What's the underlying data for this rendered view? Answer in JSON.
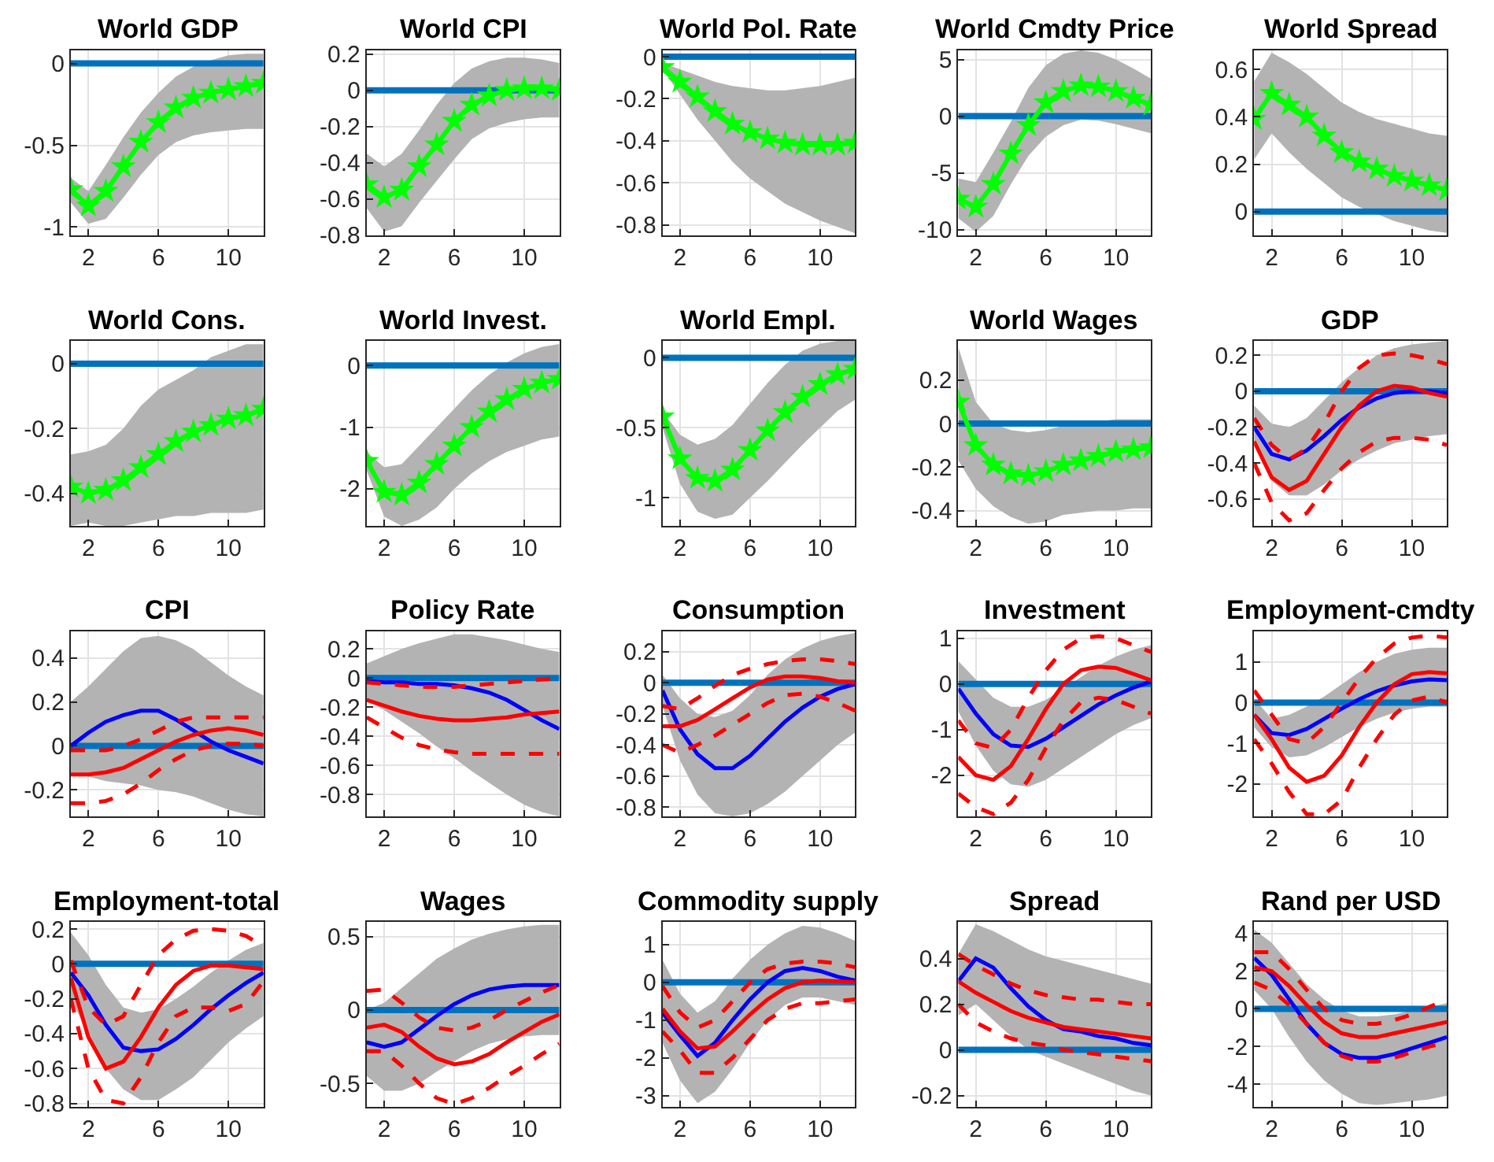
{
  "chart_data": [
    {
      "type": "line",
      "title": "World GDP",
      "x": [
        1,
        2,
        3,
        4,
        5,
        6,
        7,
        8,
        9,
        10,
        11,
        12
      ],
      "xlim": [
        1,
        12
      ],
      "xticks": [
        2,
        6,
        10
      ],
      "ylim": [
        -1.05,
        0.08
      ],
      "yticks": [
        -1,
        -0.5,
        0
      ],
      "grid": true,
      "ref_lines": [
        {
          "axis": "y",
          "value": 0,
          "color": "#0072bd"
        }
      ],
      "series": [
        {
          "color": "#00ff00",
          "marker": "star",
          "values": [
            -0.77,
            -0.87,
            -0.78,
            -0.63,
            -0.48,
            -0.36,
            -0.27,
            -0.21,
            -0.18,
            -0.16,
            -0.14,
            -0.12
          ],
          "lower": [
            -0.85,
            -0.98,
            -0.95,
            -0.82,
            -0.68,
            -0.56,
            -0.48,
            -0.44,
            -0.42,
            -0.41,
            -0.4,
            -0.4
          ],
          "upper": [
            -0.7,
            -0.78,
            -0.62,
            -0.45,
            -0.3,
            -0.18,
            -0.08,
            -0.02,
            0.02,
            0.05,
            0.06,
            0.06
          ]
        }
      ]
    },
    {
      "type": "line",
      "title": "World CPI",
      "x": [
        1,
        2,
        3,
        4,
        5,
        6,
        7,
        8,
        9,
        10,
        11,
        12
      ],
      "xlim": [
        1,
        12
      ],
      "xticks": [
        2,
        6,
        10
      ],
      "ylim": [
        -0.8,
        0.22
      ],
      "yticks": [
        -0.8,
        -0.6,
        -0.4,
        -0.2,
        0,
        0.2
      ],
      "grid": true,
      "ref_lines": [
        {
          "axis": "y",
          "value": 0,
          "color": "#0072bd"
        }
      ],
      "series": [
        {
          "color": "#00ff00",
          "marker": "star",
          "values": [
            -0.52,
            -0.59,
            -0.55,
            -0.42,
            -0.3,
            -0.17,
            -0.08,
            -0.03,
            0,
            0.01,
            0.01,
            0
          ],
          "lower": [
            -0.65,
            -0.78,
            -0.75,
            -0.62,
            -0.5,
            -0.38,
            -0.27,
            -0.21,
            -0.18,
            -0.16,
            -0.15,
            -0.15
          ],
          "upper": [
            -0.35,
            -0.42,
            -0.35,
            -0.22,
            -0.08,
            0.04,
            0.12,
            0.16,
            0.18,
            0.18,
            0.17,
            0.15
          ]
        }
      ]
    },
    {
      "type": "line",
      "title": "World Pol. Rate",
      "x": [
        1,
        2,
        3,
        4,
        5,
        6,
        7,
        8,
        9,
        10,
        11,
        12
      ],
      "xlim": [
        1,
        12
      ],
      "xticks": [
        2,
        6,
        10
      ],
      "ylim": [
        -0.85,
        0.03
      ],
      "yticks": [
        -0.8,
        -0.6,
        -0.4,
        -0.2,
        0
      ],
      "grid": true,
      "ref_lines": [
        {
          "axis": "y",
          "value": 0,
          "color": "#0072bd"
        }
      ],
      "series": [
        {
          "color": "#00ff00",
          "marker": "star",
          "values": [
            -0.05,
            -0.12,
            -0.19,
            -0.26,
            -0.32,
            -0.36,
            -0.39,
            -0.41,
            -0.42,
            -0.42,
            -0.42,
            -0.41
          ],
          "lower": [
            -0.06,
            -0.18,
            -0.3,
            -0.4,
            -0.5,
            -0.58,
            -0.64,
            -0.7,
            -0.74,
            -0.78,
            -0.81,
            -0.84
          ],
          "upper": [
            -0.03,
            -0.06,
            -0.09,
            -0.12,
            -0.14,
            -0.15,
            -0.16,
            -0.16,
            -0.15,
            -0.14,
            -0.12,
            -0.1
          ]
        }
      ]
    },
    {
      "type": "line",
      "title": "World Cmdty Price",
      "x": [
        1,
        2,
        3,
        4,
        5,
        6,
        7,
        8,
        9,
        10,
        11,
        12
      ],
      "xlim": [
        1,
        12
      ],
      "xticks": [
        2,
        6,
        10
      ],
      "ylim": [
        -10.5,
        5.8
      ],
      "yticks": [
        -10,
        -5,
        0,
        5
      ],
      "grid": true,
      "ref_lines": [
        {
          "axis": "y",
          "value": 0,
          "color": "#0072bd"
        }
      ],
      "series": [
        {
          "color": "#00ff00",
          "marker": "star",
          "values": [
            -7.3,
            -8,
            -6,
            -3.3,
            -0.8,
            1.2,
            2.2,
            2.7,
            2.6,
            2.2,
            1.6,
            1
          ],
          "lower": [
            -9,
            -10.2,
            -8.8,
            -6,
            -3.5,
            -1.8,
            -0.8,
            -0.3,
            -0.4,
            -0.7,
            -1.1,
            -1.5
          ],
          "upper": [
            -5.5,
            -5.8,
            -3.2,
            -0.5,
            2.5,
            4.5,
            5.5,
            5.8,
            5.6,
            5,
            4.2,
            3.3
          ]
        }
      ]
    },
    {
      "type": "line",
      "title": "World Spread",
      "x": [
        1,
        2,
        3,
        4,
        5,
        6,
        7,
        8,
        9,
        10,
        11,
        12
      ],
      "xlim": [
        1,
        12
      ],
      "xticks": [
        2,
        6,
        10
      ],
      "ylim": [
        -0.1,
        0.68
      ],
      "yticks": [
        0,
        0.2,
        0.4,
        0.6
      ],
      "grid": true,
      "ref_lines": [
        {
          "axis": "y",
          "value": 0,
          "color": "#0072bd"
        }
      ],
      "series": [
        {
          "color": "#00ff00",
          "marker": "star",
          "values": [
            0.39,
            0.5,
            0.45,
            0.4,
            0.32,
            0.25,
            0.21,
            0.18,
            0.15,
            0.13,
            0.11,
            0.09
          ],
          "lower": [
            0.22,
            0.33,
            0.25,
            0.18,
            0.12,
            0.06,
            0.02,
            -0.01,
            -0.04,
            -0.06,
            -0.08,
            -0.09
          ],
          "upper": [
            0.55,
            0.67,
            0.63,
            0.58,
            0.52,
            0.46,
            0.42,
            0.39,
            0.37,
            0.35,
            0.33,
            0.32
          ]
        }
      ]
    },
    {
      "type": "line",
      "title": "World Cons.",
      "x": [
        1,
        2,
        3,
        4,
        5,
        6,
        7,
        8,
        9,
        10,
        11,
        12
      ],
      "xlim": [
        1,
        12
      ],
      "xticks": [
        2,
        6,
        10
      ],
      "ylim": [
        -0.5,
        0.07
      ],
      "yticks": [
        -0.4,
        -0.2,
        0
      ],
      "grid": true,
      "ref_lines": [
        {
          "axis": "y",
          "value": 0,
          "color": "#0072bd"
        }
      ],
      "series": [
        {
          "color": "#00ff00",
          "marker": "star",
          "values": [
            -0.38,
            -0.4,
            -0.39,
            -0.36,
            -0.32,
            -0.28,
            -0.24,
            -0.21,
            -0.19,
            -0.17,
            -0.16,
            -0.14
          ],
          "lower": [
            -0.5,
            -0.49,
            -0.5,
            -0.5,
            -0.49,
            -0.48,
            -0.47,
            -0.47,
            -0.46,
            -0.46,
            -0.46,
            -0.45
          ],
          "upper": [
            -0.28,
            -0.27,
            -0.25,
            -0.2,
            -0.13,
            -0.08,
            -0.05,
            -0.02,
            0.02,
            0.04,
            0.06,
            0.06
          ]
        }
      ]
    },
    {
      "type": "line",
      "title": "World Invest.",
      "x": [
        1,
        2,
        3,
        4,
        5,
        6,
        7,
        8,
        9,
        10,
        11,
        12
      ],
      "xlim": [
        1,
        12
      ],
      "xticks": [
        2,
        6,
        10
      ],
      "ylim": [
        -2.6,
        0.4
      ],
      "yticks": [
        -2,
        -1,
        0
      ],
      "grid": true,
      "ref_lines": [
        {
          "axis": "y",
          "value": 0,
          "color": "#0072bd"
        }
      ],
      "series": [
        {
          "color": "#00ff00",
          "marker": "star",
          "values": [
            -1.55,
            -2.05,
            -2.1,
            -1.9,
            -1.6,
            -1.3,
            -1,
            -0.75,
            -0.55,
            -0.38,
            -0.28,
            -0.22
          ],
          "lower": [
            -1.7,
            -2.45,
            -2.6,
            -2.5,
            -2.3,
            -2,
            -1.75,
            -1.55,
            -1.4,
            -1.3,
            -1.2,
            -1.15
          ],
          "upper": [
            -1.4,
            -1.65,
            -1.6,
            -1.3,
            -1,
            -0.7,
            -0.4,
            -0.15,
            0.05,
            0.2,
            0.3,
            0.35
          ]
        }
      ]
    },
    {
      "type": "line",
      "title": "World Empl.",
      "x": [
        1,
        2,
        3,
        4,
        5,
        6,
        7,
        8,
        9,
        10,
        11,
        12
      ],
      "xlim": [
        1,
        12
      ],
      "xticks": [
        2,
        6,
        10
      ],
      "ylim": [
        -1.2,
        0.12
      ],
      "yticks": [
        -1,
        -0.5,
        0
      ],
      "grid": true,
      "ref_lines": [
        {
          "axis": "y",
          "value": 0,
          "color": "#0072bd"
        }
      ],
      "series": [
        {
          "color": "#00ff00",
          "marker": "star",
          "values": [
            -0.42,
            -0.72,
            -0.86,
            -0.88,
            -0.8,
            -0.66,
            -0.52,
            -0.39,
            -0.28,
            -0.19,
            -0.12,
            -0.08
          ],
          "lower": [
            -0.5,
            -0.9,
            -1.1,
            -1.15,
            -1.12,
            -1,
            -0.88,
            -0.75,
            -0.62,
            -0.5,
            -0.38,
            -0.3
          ],
          "upper": [
            -0.38,
            -0.55,
            -0.62,
            -0.58,
            -0.48,
            -0.33,
            -0.18,
            -0.05,
            0.05,
            0.1,
            0.12,
            0.12
          ]
        }
      ]
    },
    {
      "type": "line",
      "title": "World Wages",
      "x": [
        1,
        2,
        3,
        4,
        5,
        6,
        7,
        8,
        9,
        10,
        11,
        12
      ],
      "xlim": [
        1,
        12
      ],
      "xticks": [
        2,
        6,
        10
      ],
      "ylim": [
        -0.47,
        0.38
      ],
      "yticks": [
        -0.4,
        -0.2,
        0,
        0.2
      ],
      "grid": true,
      "ref_lines": [
        {
          "axis": "y",
          "value": 0,
          "color": "#0072bd"
        }
      ],
      "series": [
        {
          "color": "#00ff00",
          "marker": "star",
          "values": [
            0.1,
            -0.1,
            -0.19,
            -0.23,
            -0.24,
            -0.22,
            -0.19,
            -0.17,
            -0.15,
            -0.13,
            -0.12,
            -0.11
          ],
          "lower": [
            -0.17,
            -0.3,
            -0.38,
            -0.43,
            -0.46,
            -0.45,
            -0.42,
            -0.41,
            -0.4,
            -0.4,
            -0.39,
            -0.39
          ],
          "upper": [
            0.35,
            0.1,
            0,
            -0.03,
            -0.04,
            -0.03,
            -0.01,
            0,
            0.01,
            0.02,
            0.02,
            0.02
          ]
        }
      ]
    },
    {
      "type": "line",
      "title": "GDP",
      "x": [
        1,
        2,
        3,
        4,
        5,
        6,
        7,
        8,
        9,
        10,
        11,
        12
      ],
      "xlim": [
        1,
        12
      ],
      "xticks": [
        2,
        6,
        10
      ],
      "ylim": [
        -0.75,
        0.28
      ],
      "yticks": [
        -0.6,
        -0.4,
        -0.2,
        0,
        0.2
      ],
      "grid": true,
      "ref_lines": [
        {
          "axis": "y",
          "value": 0,
          "color": "#0072bd"
        }
      ],
      "series": [
        {
          "color": "#0000ff",
          "values": [
            -0.2,
            -0.35,
            -0.38,
            -0.33,
            -0.25,
            -0.16,
            -0.09,
            -0.04,
            -0.01,
            0,
            0,
            -0.01
          ],
          "lower": [
            -0.3,
            -0.5,
            -0.58,
            -0.58,
            -0.52,
            -0.44,
            -0.38,
            -0.33,
            -0.29,
            -0.27,
            -0.25,
            -0.24
          ],
          "upper": [
            -0.08,
            -0.18,
            -0.2,
            -0.15,
            -0.05,
            0.05,
            0.13,
            0.2,
            0.24,
            0.26,
            0.27,
            0.28
          ]
        },
        {
          "color": "#ff0000",
          "values": [
            -0.28,
            -0.48,
            -0.55,
            -0.5,
            -0.35,
            -0.2,
            -0.08,
            0,
            0.03,
            0.02,
            -0.01,
            -0.03
          ]
        },
        {
          "color": "#ff0000",
          "line_style": "dashed",
          "values": [
            -0.15,
            -0.3,
            -0.38,
            -0.32,
            -0.18,
            0,
            0.13,
            0.2,
            0.21,
            0.2,
            0.18,
            0.15
          ]
        },
        {
          "color": "#ff0000",
          "line_style": "dashed",
          "values": [
            -0.4,
            -0.62,
            -0.72,
            -0.68,
            -0.55,
            -0.43,
            -0.34,
            -0.28,
            -0.26,
            -0.26,
            -0.27,
            -0.3
          ]
        }
      ]
    },
    {
      "type": "line",
      "title": "CPI",
      "x": [
        1,
        2,
        3,
        4,
        5,
        6,
        7,
        8,
        9,
        10,
        11,
        12
      ],
      "xlim": [
        1,
        12
      ],
      "xticks": [
        2,
        6,
        10
      ],
      "ylim": [
        -0.32,
        0.52
      ],
      "yticks": [
        -0.2,
        0,
        0.2,
        0.4
      ],
      "grid": true,
      "ref_lines": [
        {
          "axis": "y",
          "value": 0,
          "color": "#0072bd"
        }
      ],
      "series": [
        {
          "color": "#0000ff",
          "values": [
            0,
            0.06,
            0.11,
            0.14,
            0.16,
            0.16,
            0.12,
            0.07,
            0.02,
            -0.02,
            -0.05,
            -0.08
          ],
          "lower": [
            -0.12,
            -0.14,
            -0.16,
            -0.17,
            -0.18,
            -0.2,
            -0.21,
            -0.23,
            -0.26,
            -0.29,
            -0.31,
            -0.32
          ],
          "upper": [
            0.2,
            0.27,
            0.35,
            0.43,
            0.49,
            0.5,
            0.48,
            0.44,
            0.38,
            0.32,
            0.27,
            0.23
          ]
        },
        {
          "color": "#ff0000",
          "values": [
            -0.13,
            -0.13,
            -0.12,
            -0.1,
            -0.06,
            -0.02,
            0.02,
            0.05,
            0.07,
            0.08,
            0.07,
            0.05
          ]
        },
        {
          "color": "#ff0000",
          "line_style": "dashed",
          "values": [
            -0.02,
            -0.02,
            -0.02,
            0,
            0.03,
            0.07,
            0.11,
            0.13,
            0.13,
            0.13,
            0.13,
            0.13
          ]
        },
        {
          "color": "#ff0000",
          "line_style": "dashed",
          "values": [
            -0.26,
            -0.26,
            -0.25,
            -0.22,
            -0.17,
            -0.11,
            -0.06,
            -0.02,
            0,
            0.01,
            0.01,
            0
          ]
        }
      ]
    },
    {
      "type": "line",
      "title": "Policy Rate",
      "x": [
        1,
        2,
        3,
        4,
        5,
        6,
        7,
        8,
        9,
        10,
        11,
        12
      ],
      "xlim": [
        1,
        12
      ],
      "xticks": [
        2,
        6,
        10
      ],
      "ylim": [
        -0.95,
        0.32
      ],
      "yticks": [
        -0.8,
        -0.6,
        -0.4,
        -0.2,
        0,
        0.2
      ],
      "grid": true,
      "ref_lines": [
        {
          "axis": "y",
          "value": 0,
          "color": "#0072bd"
        }
      ],
      "series": [
        {
          "color": "#0000ff",
          "values": [
            -0.02,
            -0.03,
            -0.03,
            -0.04,
            -0.04,
            -0.05,
            -0.07,
            -0.1,
            -0.15,
            -0.22,
            -0.29,
            -0.35
          ],
          "lower": [
            -0.15,
            -0.22,
            -0.3,
            -0.38,
            -0.47,
            -0.55,
            -0.64,
            -0.72,
            -0.8,
            -0.87,
            -0.92,
            -0.95
          ],
          "upper": [
            0.1,
            0.15,
            0.2,
            0.24,
            0.27,
            0.3,
            0.3,
            0.28,
            0.26,
            0.23,
            0.2,
            0.18
          ]
        },
        {
          "color": "#ff0000",
          "values": [
            -0.15,
            -0.19,
            -0.23,
            -0.26,
            -0.28,
            -0.29,
            -0.29,
            -0.28,
            -0.27,
            -0.25,
            -0.24,
            -0.23
          ]
        },
        {
          "color": "#ff0000",
          "line_style": "dashed",
          "values": [
            -0.03,
            -0.04,
            -0.05,
            -0.06,
            -0.06,
            -0.06,
            -0.05,
            -0.04,
            -0.03,
            -0.02,
            -0.01,
            0
          ]
        },
        {
          "color": "#ff0000",
          "line_style": "dashed",
          "values": [
            -0.27,
            -0.34,
            -0.41,
            -0.46,
            -0.49,
            -0.51,
            -0.52,
            -0.52,
            -0.52,
            -0.52,
            -0.52,
            -0.52
          ]
        }
      ]
    },
    {
      "type": "line",
      "title": "Consumption",
      "x": [
        1,
        2,
        3,
        4,
        5,
        6,
        7,
        8,
        9,
        10,
        11,
        12
      ],
      "xlim": [
        1,
        12
      ],
      "xticks": [
        2,
        6,
        10
      ],
      "ylim": [
        -0.86,
        0.33
      ],
      "yticks": [
        -0.8,
        -0.6,
        -0.4,
        -0.2,
        0,
        0.2
      ],
      "grid": true,
      "ref_lines": [
        {
          "axis": "y",
          "value": 0,
          "color": "#0072bd"
        }
      ],
      "series": [
        {
          "color": "#0000ff",
          "values": [
            -0.05,
            -0.3,
            -0.46,
            -0.55,
            -0.55,
            -0.47,
            -0.36,
            -0.25,
            -0.16,
            -0.09,
            -0.04,
            -0.01
          ],
          "lower": [
            -0.15,
            -0.5,
            -0.72,
            -0.84,
            -0.86,
            -0.84,
            -0.78,
            -0.7,
            -0.6,
            -0.5,
            -0.4,
            -0.32
          ],
          "upper": [
            0.05,
            -0.1,
            -0.2,
            -0.22,
            -0.18,
            -0.08,
            0.05,
            0.15,
            0.22,
            0.27,
            0.3,
            0.32
          ]
        },
        {
          "color": "#ff0000",
          "values": [
            -0.28,
            -0.28,
            -0.24,
            -0.17,
            -0.1,
            -0.03,
            0.02,
            0.04,
            0.04,
            0.03,
            0.01,
            0
          ]
        },
        {
          "color": "#ff0000",
          "line_style": "dashed",
          "values": [
            -0.15,
            -0.17,
            -0.1,
            -0.02,
            0.05,
            0.09,
            0.12,
            0.14,
            0.15,
            0.15,
            0.14,
            0.12
          ]
        },
        {
          "color": "#ff0000",
          "line_style": "dashed",
          "values": [
            -0.4,
            -0.45,
            -0.4,
            -0.34,
            -0.27,
            -0.2,
            -0.13,
            -0.08,
            -0.07,
            -0.09,
            -0.13,
            -0.18
          ]
        }
      ]
    },
    {
      "type": "line",
      "title": "Investment",
      "x": [
        1,
        2,
        3,
        4,
        5,
        6,
        7,
        8,
        9,
        10,
        11,
        12
      ],
      "xlim": [
        1,
        12
      ],
      "xticks": [
        2,
        6,
        10
      ],
      "ylim": [
        -2.9,
        1.15
      ],
      "yticks": [
        -2,
        -1,
        0,
        1
      ],
      "grid": true,
      "ref_lines": [
        {
          "axis": "y",
          "value": 0,
          "color": "#0072bd"
        }
      ],
      "series": [
        {
          "color": "#0000ff",
          "values": [
            -0.1,
            -0.65,
            -1.1,
            -1.35,
            -1.38,
            -1.2,
            -0.95,
            -0.7,
            -0.45,
            -0.25,
            -0.08,
            0.05
          ],
          "lower": [
            -0.6,
            -1.35,
            -1.9,
            -2.2,
            -2.25,
            -2.1,
            -1.85,
            -1.6,
            -1.35,
            -1.1,
            -0.9,
            -0.75
          ],
          "upper": [
            0.5,
            0.1,
            -0.3,
            -0.5,
            -0.5,
            -0.35,
            -0.1,
            0.15,
            0.4,
            0.6,
            0.75,
            0.85
          ]
        },
        {
          "color": "#ff0000",
          "values": [
            -1.6,
            -2,
            -2.1,
            -1.8,
            -1.2,
            -0.55,
            0,
            0.3,
            0.38,
            0.35,
            0.22,
            0.08
          ]
        },
        {
          "color": "#ff0000",
          "line_style": "dashed",
          "values": [
            -0.8,
            -1.3,
            -1.4,
            -1,
            -0.3,
            0.3,
            0.75,
            1,
            1.05,
            1,
            0.85,
            0.7
          ]
        },
        {
          "color": "#ff0000",
          "line_style": "dashed",
          "values": [
            -2.4,
            -2.7,
            -2.85,
            -2.6,
            -2.1,
            -1.4,
            -0.8,
            -0.4,
            -0.3,
            -0.35,
            -0.5,
            -0.65
          ]
        }
      ]
    },
    {
      "type": "line",
      "title": "Employment-cmdty",
      "x": [
        1,
        2,
        3,
        4,
        5,
        6,
        7,
        8,
        9,
        10,
        11,
        12
      ],
      "xlim": [
        1,
        12
      ],
      "xticks": [
        2,
        6,
        10
      ],
      "ylim": [
        -2.8,
        1.75
      ],
      "yticks": [
        -2,
        -1,
        0,
        1
      ],
      "grid": true,
      "ref_lines": [
        {
          "axis": "y",
          "value": 0,
          "color": "#0072bd"
        }
      ],
      "series": [
        {
          "color": "#0000ff",
          "values": [
            -0.3,
            -0.75,
            -0.8,
            -0.65,
            -0.4,
            -0.15,
            0.08,
            0.28,
            0.42,
            0.52,
            0.57,
            0.55
          ],
          "lower": [
            -0.6,
            -1.1,
            -1.35,
            -1.3,
            -1.1,
            -0.85,
            -0.6,
            -0.4,
            -0.25,
            -0.15,
            -0.1,
            -0.1
          ],
          "upper": [
            0.1,
            -0.4,
            -0.3,
            -0.1,
            0.15,
            0.45,
            0.75,
            1,
            1.2,
            1.3,
            1.35,
            1.35
          ]
        },
        {
          "color": "#ff0000",
          "values": [
            -0.3,
            -0.9,
            -1.6,
            -1.95,
            -1.8,
            -1.3,
            -0.6,
            0,
            0.45,
            0.7,
            0.75,
            0.72
          ]
        },
        {
          "color": "#ff0000",
          "line_style": "dashed",
          "values": [
            0.3,
            -0.3,
            -0.9,
            -1,
            -0.6,
            0,
            0.6,
            1.1,
            1.45,
            1.6,
            1.65,
            1.6
          ]
        },
        {
          "color": "#ff0000",
          "line_style": "dashed",
          "values": [
            -0.9,
            -1.5,
            -2.2,
            -2.75,
            -2.75,
            -2.4,
            -1.6,
            -0.9,
            -0.3,
            0.05,
            0.15,
            0
          ]
        }
      ]
    },
    {
      "type": "line",
      "title": "Employment-total",
      "x": [
        1,
        2,
        3,
        4,
        5,
        6,
        7,
        8,
        9,
        10,
        11,
        12
      ],
      "xlim": [
        1,
        12
      ],
      "xticks": [
        2,
        6,
        10
      ],
      "ylim": [
        -0.82,
        0.24
      ],
      "yticks": [
        -0.8,
        -0.6,
        -0.4,
        -0.2,
        0,
        0.2
      ],
      "grid": true,
      "ref_lines": [
        {
          "axis": "y",
          "value": 0,
          "color": "#0072bd"
        }
      ],
      "series": [
        {
          "color": "#0000ff",
          "values": [
            -0.05,
            -0.18,
            -0.35,
            -0.48,
            -0.5,
            -0.49,
            -0.43,
            -0.35,
            -0.26,
            -0.18,
            -0.11,
            -0.05
          ],
          "lower": [
            -0.2,
            -0.4,
            -0.6,
            -0.72,
            -0.78,
            -0.78,
            -0.72,
            -0.65,
            -0.55,
            -0.45,
            -0.37,
            -0.3
          ],
          "upper": [
            0.18,
            0.05,
            -0.12,
            -0.25,
            -0.28,
            -0.26,
            -0.2,
            -0.13,
            -0.05,
            0.02,
            0.08,
            0.12
          ]
        },
        {
          "color": "#ff0000",
          "values": [
            -0.08,
            -0.42,
            -0.6,
            -0.56,
            -0.42,
            -0.25,
            -0.12,
            -0.04,
            -0.01,
            -0.01,
            -0.02,
            -0.03
          ]
        },
        {
          "color": "#ff0000",
          "line_style": "dashed",
          "values": [
            0.02,
            -0.25,
            -0.35,
            -0.3,
            -0.12,
            0.05,
            0.14,
            0.19,
            0.2,
            0.19,
            0.16,
            0.1
          ]
        },
        {
          "color": "#ff0000",
          "line_style": "dashed",
          "values": [
            -0.2,
            -0.6,
            -0.78,
            -0.8,
            -0.65,
            -0.45,
            -0.3,
            -0.25,
            -0.25,
            -0.27,
            -0.23,
            -0.1
          ]
        }
      ]
    },
    {
      "type": "line",
      "title": "Wages",
      "x": [
        1,
        2,
        3,
        4,
        5,
        6,
        7,
        8,
        9,
        10,
        11,
        12
      ],
      "xlim": [
        1,
        12
      ],
      "xticks": [
        2,
        6,
        10
      ],
      "ylim": [
        -0.66,
        0.6
      ],
      "yticks": [
        -0.5,
        0,
        0.5
      ],
      "grid": true,
      "ref_lines": [
        {
          "axis": "y",
          "value": 0,
          "color": "#0072bd"
        }
      ],
      "series": [
        {
          "color": "#0000ff",
          "values": [
            -0.22,
            -0.25,
            -0.22,
            -0.13,
            -0.04,
            0.04,
            0.1,
            0.14,
            0.16,
            0.17,
            0.17,
            0.17
          ],
          "lower": [
            -0.45,
            -0.55,
            -0.55,
            -0.5,
            -0.42,
            -0.35,
            -0.28,
            -0.23,
            -0.2,
            -0.18,
            -0.17,
            -0.17
          ],
          "upper": [
            0,
            0.05,
            0.15,
            0.25,
            0.35,
            0.42,
            0.48,
            0.52,
            0.55,
            0.57,
            0.58,
            0.58
          ]
        },
        {
          "color": "#ff0000",
          "values": [
            -0.12,
            -0.1,
            -0.15,
            -0.25,
            -0.33,
            -0.37,
            -0.35,
            -0.3,
            -0.22,
            -0.15,
            -0.08,
            -0.03
          ]
        },
        {
          "color": "#ff0000",
          "line_style": "dashed",
          "values": [
            0.13,
            0.14,
            0.05,
            -0.05,
            -0.12,
            -0.14,
            -0.12,
            -0.07,
            0,
            0.06,
            0.12,
            0.17
          ]
        },
        {
          "color": "#ff0000",
          "line_style": "dashed",
          "values": [
            -0.28,
            -0.28,
            -0.38,
            -0.5,
            -0.6,
            -0.64,
            -0.6,
            -0.53,
            -0.45,
            -0.38,
            -0.3,
            -0.23
          ]
        }
      ]
    },
    {
      "type": "line",
      "title": "Commodity supply",
      "x": [
        1,
        2,
        3,
        4,
        5,
        6,
        7,
        8,
        9,
        10,
        11,
        12
      ],
      "xlim": [
        1,
        12
      ],
      "xticks": [
        2,
        6,
        10
      ],
      "ylim": [
        -3.3,
        1.6
      ],
      "yticks": [
        -3,
        -2,
        -1,
        0,
        1
      ],
      "grid": true,
      "ref_lines": [
        {
          "axis": "y",
          "value": 0,
          "color": "#0072bd"
        }
      ],
      "series": [
        {
          "color": "#0000ff",
          "values": [
            -0.8,
            -1.4,
            -1.95,
            -1.6,
            -1,
            -0.45,
            0,
            0.3,
            0.38,
            0.3,
            0.15,
            0.05
          ],
          "lower": [
            -1.6,
            -2.6,
            -3.2,
            -2.9,
            -2.3,
            -1.6,
            -1,
            -0.6,
            -0.4,
            -0.4,
            -0.5,
            -0.6
          ],
          "upper": [
            0.6,
            -0.3,
            -0.8,
            -0.5,
            0.1,
            0.6,
            1,
            1.3,
            1.5,
            1.45,
            1.3,
            1.1
          ]
        },
        {
          "color": "#ff0000",
          "values": [
            -0.7,
            -1.3,
            -1.75,
            -1.7,
            -1.3,
            -0.85,
            -0.45,
            -0.15,
            0,
            0.05,
            0.03,
            0
          ]
        },
        {
          "color": "#ff0000",
          "line_style": "dashed",
          "values": [
            -0.1,
            -0.8,
            -1.2,
            -1,
            -0.5,
            0,
            0.35,
            0.5,
            0.55,
            0.55,
            0.5,
            0.4
          ]
        },
        {
          "color": "#ff0000",
          "line_style": "dashed",
          "values": [
            -1.3,
            -1.8,
            -2.4,
            -2.4,
            -2,
            -1.5,
            -1,
            -0.7,
            -0.55,
            -0.55,
            -0.5,
            -0.45
          ]
        }
      ]
    },
    {
      "type": "line",
      "title": "Spread",
      "x": [
        1,
        2,
        3,
        4,
        5,
        6,
        7,
        8,
        9,
        10,
        11,
        12
      ],
      "xlim": [
        1,
        12
      ],
      "xticks": [
        2,
        6,
        10
      ],
      "ylim": [
        -0.25,
        0.56
      ],
      "yticks": [
        -0.2,
        0,
        0.2,
        0.4
      ],
      "grid": true,
      "ref_lines": [
        {
          "axis": "y",
          "value": 0,
          "color": "#0072bd"
        }
      ],
      "series": [
        {
          "color": "#0000ff",
          "values": [
            0.3,
            0.4,
            0.36,
            0.27,
            0.19,
            0.13,
            0.09,
            0.08,
            0.06,
            0.05,
            0.03,
            0.02
          ],
          "lower": [
            0.15,
            0.2,
            0.13,
            0.06,
            0,
            -0.03,
            -0.06,
            -0.09,
            -0.12,
            -0.15,
            -0.18,
            -0.2
          ],
          "upper": [
            0.42,
            0.55,
            0.52,
            0.48,
            0.44,
            0.41,
            0.39,
            0.37,
            0.35,
            0.33,
            0.31,
            0.29
          ]
        },
        {
          "color": "#ff0000",
          "values": [
            0.3,
            0.25,
            0.21,
            0.17,
            0.14,
            0.12,
            0.1,
            0.09,
            0.08,
            0.07,
            0.06,
            0.05
          ]
        },
        {
          "color": "#ff0000",
          "line_style": "dashed",
          "values": [
            0.42,
            0.37,
            0.33,
            0.29,
            0.26,
            0.24,
            0.23,
            0.22,
            0.22,
            0.21,
            0.2,
            0.2
          ]
        },
        {
          "color": "#ff0000",
          "line_style": "dashed",
          "values": [
            0.2,
            0.12,
            0.08,
            0.05,
            0.03,
            0.02,
            0,
            -0.01,
            -0.02,
            -0.03,
            -0.04,
            -0.05
          ]
        }
      ]
    },
    {
      "type": "line",
      "title": "Rand per USD",
      "x": [
        1,
        2,
        3,
        4,
        5,
        6,
        7,
        8,
        9,
        10,
        11,
        12
      ],
      "xlim": [
        1,
        12
      ],
      "xticks": [
        2,
        6,
        10
      ],
      "ylim": [
        -5.2,
        4.6
      ],
      "yticks": [
        -4,
        -2,
        0,
        2,
        4
      ],
      "grid": true,
      "ref_lines": [
        {
          "axis": "y",
          "value": 0,
          "color": "#0072bd"
        }
      ],
      "series": [
        {
          "color": "#0000ff",
          "values": [
            2.7,
            1.8,
            0.5,
            -0.8,
            -1.8,
            -2.4,
            -2.6,
            -2.6,
            -2.4,
            -2.1,
            -1.8,
            -1.5
          ],
          "lower": [
            1,
            0,
            -1.5,
            -2.8,
            -3.8,
            -4.5,
            -5,
            -5.1,
            -5,
            -4.9,
            -4.8,
            -4.6
          ],
          "upper": [
            4.2,
            3.5,
            2.4,
            1.3,
            0.5,
            -0.1,
            -0.4,
            -0.4,
            -0.3,
            -0.1,
            0.1,
            0.3
          ]
        },
        {
          "color": "#ff0000",
          "values": [
            2.2,
            2,
            1.2,
            0.2,
            -0.7,
            -1.3,
            -1.5,
            -1.5,
            -1.3,
            -1.1,
            -0.9,
            -0.7
          ]
        },
        {
          "color": "#ff0000",
          "line_style": "dashed",
          "values": [
            3,
            3,
            2.1,
            1,
            0,
            -0.6,
            -0.8,
            -0.8,
            -0.6,
            -0.3,
            0.1,
            0.5
          ]
        },
        {
          "color": "#ff0000",
          "line_style": "dashed",
          "values": [
            1.4,
            1,
            0.2,
            -0.8,
            -1.8,
            -2.5,
            -2.8,
            -2.8,
            -2.6,
            -2.3,
            -2,
            -1.8
          ]
        }
      ]
    }
  ]
}
